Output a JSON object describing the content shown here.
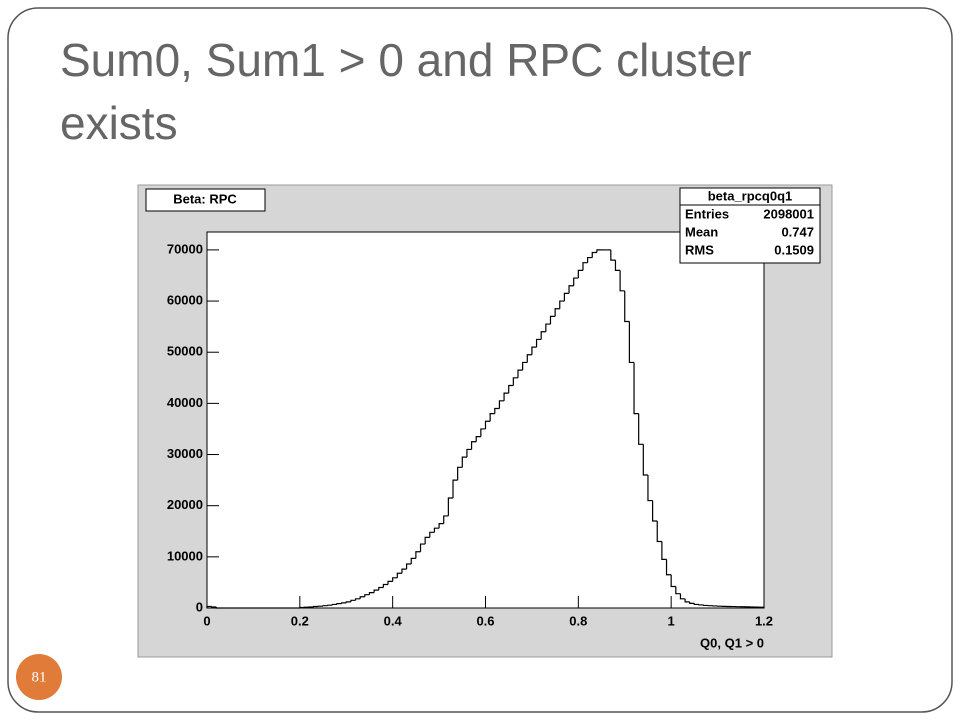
{
  "slide": {
    "title_line1": "Sum0, Sum1 > 0 and RPC cluster",
    "title_line2": "exists",
    "page_number": "81"
  },
  "chart_data": {
    "type": "histogram",
    "title": "Beta: RPC",
    "x_label": "Q0, Q1 > 0",
    "stats": {
      "name": "beta_rpcq0q1",
      "rows": [
        {
          "label": "Entries",
          "value": 2098001
        },
        {
          "label": "Mean",
          "value": 0.747
        },
        {
          "label": "RMS",
          "value": 0.1509
        }
      ]
    },
    "color": "#000000",
    "bins": [
      0,
      0.01,
      0.02,
      0.03,
      0.04,
      0.05,
      0.06,
      0.07,
      0.08,
      0.09,
      0.1,
      0.11,
      0.12,
      0.13,
      0.14,
      0.15,
      0.16,
      0.17,
      0.18,
      0.19,
      0.2,
      0.21,
      0.22,
      0.23,
      0.24,
      0.25,
      0.26,
      0.27,
      0.28,
      0.29,
      0.3,
      0.31,
      0.32,
      0.33,
      0.34,
      0.35,
      0.36,
      0.37,
      0.38,
      0.39,
      0.4,
      0.41,
      0.42,
      0.43,
      0.44,
      0.45,
      0.46,
      0.47,
      0.48,
      0.49,
      0.5,
      0.51,
      0.52,
      0.53,
      0.54,
      0.55,
      0.56,
      0.57,
      0.58,
      0.59,
      0.6,
      0.61,
      0.62,
      0.63,
      0.64,
      0.65,
      0.66,
      0.67,
      0.68,
      0.69,
      0.7,
      0.71,
      0.72,
      0.73,
      0.74,
      0.75,
      0.76,
      0.77,
      0.78,
      0.79,
      0.8,
      0.81,
      0.82,
      0.83,
      0.84,
      0.85,
      0.86,
      0.87,
      0.88,
      0.89,
      0.9,
      0.91,
      0.92,
      0.93,
      0.94,
      0.95,
      0.96,
      0.97,
      0.98,
      0.99,
      1,
      1.01,
      1.02,
      1.03,
      1.04,
      1.05,
      1.06,
      1.07,
      1.08,
      1.09,
      1.1,
      1.11,
      1.12,
      1.13,
      1.14,
      1.15,
      1.16,
      1.17,
      1.18,
      1.19,
      1.2
    ],
    "values": [
      300,
      200,
      0,
      0,
      0,
      0,
      0,
      0,
      0,
      0,
      0,
      0,
      0,
      0,
      0,
      0,
      0,
      0,
      0,
      0,
      100,
      150,
      200,
      300,
      350,
      450,
      550,
      700,
      850,
      1000,
      1200,
      1500,
      1800,
      2200,
      2600,
      3000,
      3500,
      4000,
      4600,
      5200,
      5900,
      6800,
      7600,
      8600,
      9700,
      11000,
      12500,
      13800,
      14800,
      15600,
      16500,
      18000,
      21500,
      25000,
      27500,
      29500,
      31000,
      32500,
      33500,
      35000,
      36500,
      38000,
      39000,
      40500,
      42000,
      43500,
      45000,
      46500,
      48000,
      49500,
      51000,
      52500,
      54000,
      55500,
      57000,
      58500,
      60000,
      61500,
      63000,
      64500,
      66000,
      67500,
      68500,
      69500,
      70000,
      70000,
      70000,
      68000,
      66000,
      62000,
      56000,
      48000,
      38000,
      32000,
      26000,
      21000,
      17000,
      13000,
      9500,
      6500,
      4200,
      2800,
      1800,
      1200,
      900,
      700,
      600,
      500,
      450,
      400,
      350,
      320,
      300,
      280,
      260,
      240,
      220,
      200,
      180,
      160
    ],
    "xlim": [
      0,
      1.2
    ],
    "ylim": [
      0,
      73500
    ],
    "xticks": [
      0,
      0.2,
      0.4,
      0.6,
      0.8,
      1,
      1.2
    ],
    "yticks": [
      0,
      10000,
      20000,
      30000,
      40000,
      50000,
      60000,
      70000
    ]
  }
}
